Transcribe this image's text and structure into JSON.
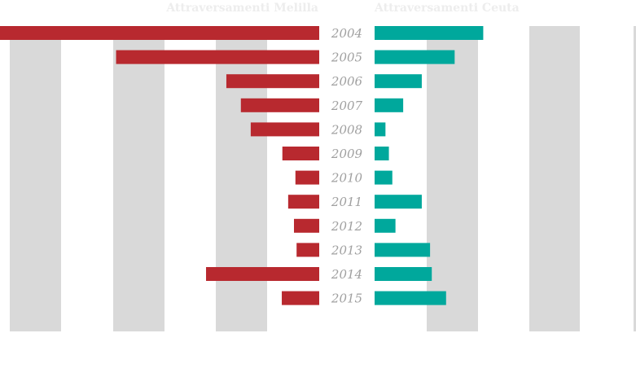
{
  "chart_data": [
    {
      "type": "bar",
      "orientation": "horizontal",
      "direction": "leftward",
      "title": "Attraversamenti Melilla",
      "categories": [
        "2004",
        "2005",
        "2006",
        "2007",
        "2008",
        "2009",
        "2010",
        "2011",
        "2012",
        "2013",
        "2014",
        "2015"
      ],
      "values": [
        11000,
        7000,
        3200,
        2700,
        2360,
        1270,
        820,
        1070,
        870,
        780,
        3900,
        1290
      ],
      "xlim": [
        0,
        11000
      ],
      "grid_bands": true,
      "color": "#b8292f"
    },
    {
      "type": "bar",
      "orientation": "horizontal",
      "direction": "rightward",
      "title": "Attraversamenti Ceuta",
      "categories": [
        "2004",
        "2005",
        "2006",
        "2007",
        "2008",
        "2009",
        "2010",
        "2011",
        "2012",
        "2013",
        "2014",
        "2015"
      ],
      "values": [
        3800,
        2800,
        1650,
        1000,
        380,
        500,
        620,
        1650,
        730,
        1940,
        2000,
        2500
      ],
      "xlim": [
        0,
        9000
      ],
      "grid_bands": true,
      "color": "#00a89c"
    }
  ],
  "colors": {
    "melilla": "#b8292f",
    "ceuta": "#00a89c",
    "band": "#d9d9d9",
    "year_label": "#a0a0a0",
    "title": "#ededed"
  }
}
